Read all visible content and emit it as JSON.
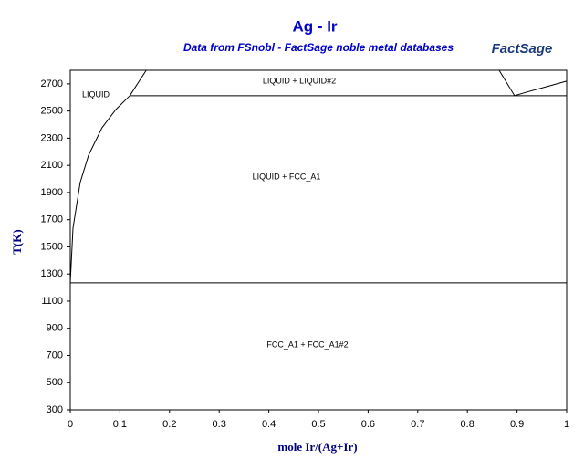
{
  "chart_data": {
    "type": "line",
    "title": "Ag - Ir",
    "subtitle": "Data from FSnobl - FactSage noble metal databases",
    "logo": "FactSage",
    "xlabel": "mole Ir/(Ag+Ir)",
    "ylabel": "T(K)",
    "xlim": [
      0,
      1
    ],
    "ylim": [
      300,
      2800
    ],
    "xticks": [
      0,
      0.1,
      0.2,
      0.3,
      0.4,
      0.5,
      0.6,
      0.7,
      0.8,
      0.9,
      1
    ],
    "yticks": [
      300,
      500,
      700,
      900,
      1100,
      1300,
      1500,
      1700,
      1900,
      2100,
      2300,
      2500,
      2700
    ],
    "series": [
      {
        "color": "#000000",
        "x": [
          0,
          0.0055,
          0.02,
          0.037,
          0.064,
          0.092,
          0.12
        ],
        "values": [
          1235,
          1638,
          1974,
          2176,
          2377,
          2512,
          2613
        ]
      },
      {
        "color": "#000000",
        "x": [
          0.12,
          1
        ],
        "values": [
          2613,
          2613
        ]
      },
      {
        "color": "#000000",
        "x": [
          0.12,
          0.153
        ],
        "values": [
          2613,
          2800
        ]
      },
      {
        "color": "#000000",
        "x": [
          0.864,
          0.895,
          0.92,
          0.96,
          1
        ],
        "values": [
          2800,
          2613,
          2640,
          2680,
          2720
        ]
      },
      {
        "color": "#000000",
        "x": [
          0,
          1
        ],
        "values": [
          1235,
          1235
        ]
      }
    ],
    "annotations": [
      "LIQUID + LIQUID#2",
      "LIQUID",
      "LIQUID + FCC_A1",
      "FCC_A1 + FCC_A1#2"
    ]
  }
}
